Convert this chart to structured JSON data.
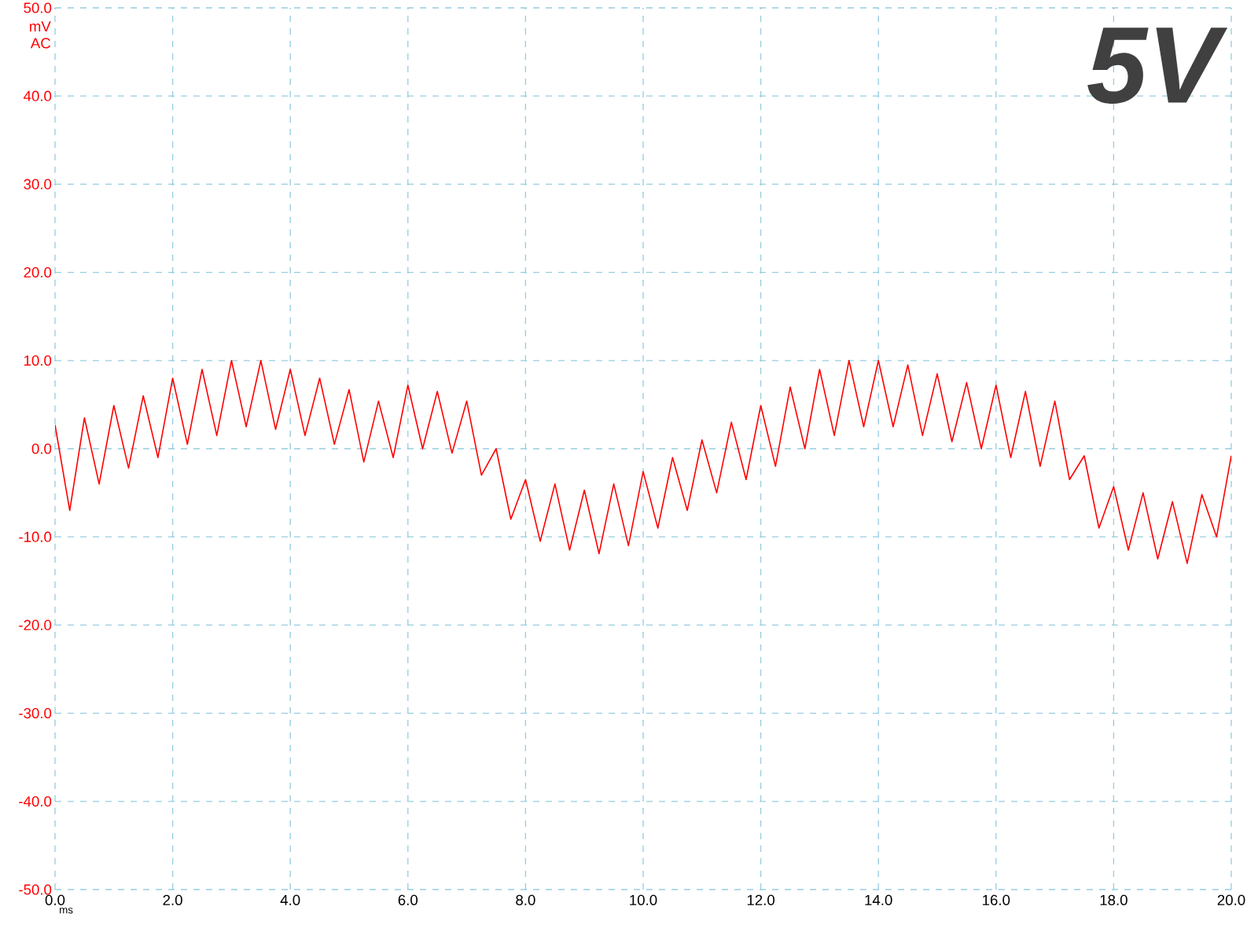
{
  "chart_data": {
    "type": "line",
    "title": "5V",
    "xlabel": "ms",
    "ylabel": "mV AC",
    "x": [
      0,
      0.25,
      0.5,
      0.75,
      1,
      1.25,
      1.5,
      1.75,
      2,
      2.25,
      2.5,
      2.75,
      3,
      3.25,
      3.5,
      3.75,
      4,
      4.25,
      4.5,
      4.75,
      5,
      5.25,
      5.5,
      5.75,
      6,
      6.25,
      6.5,
      6.75,
      7,
      7.25,
      7.5,
      7.75,
      8,
      8.25,
      8.5,
      8.75,
      9,
      9.25,
      9.5,
      9.75,
      10,
      10.25,
      10.5,
      10.75,
      11,
      11.25,
      11.5,
      11.75,
      12,
      12.25,
      12.5,
      12.75,
      13,
      13.25,
      13.5,
      13.75,
      14,
      14.25,
      14.5,
      14.75,
      15,
      15.25,
      15.5,
      15.75,
      16,
      16.25,
      16.5,
      16.75,
      17,
      17.25,
      17.5,
      17.75,
      18,
      18.25,
      18.5,
      18.75,
      19,
      19.25,
      19.5,
      19.75,
      20
    ],
    "series": [
      {
        "color": "#ff0000",
        "values": [
          2.7,
          -7,
          3.5,
          -4,
          4.9,
          -2.2,
          6,
          -1,
          8,
          0.5,
          9,
          1.5,
          10,
          2.5,
          10,
          2.2,
          9,
          1.5,
          8,
          0.5,
          6.7,
          -1.5,
          5.4,
          -1,
          7.2,
          0,
          6.5,
          -0.5,
          5.4,
          -3,
          0,
          -8,
          -3.5,
          -10.5,
          -4,
          -11.5,
          -4.7,
          -11.9,
          -4,
          -11,
          -2.6,
          -9,
          -1,
          -7,
          1,
          -5,
          3,
          -3.5,
          4.9,
          -2,
          7,
          0,
          9,
          1.5,
          10,
          2.5,
          10,
          2.5,
          9.5,
          1.5,
          8.5,
          0.8,
          7.5,
          0,
          7.2,
          -1,
          6.5,
          -2,
          5.4,
          -3.5,
          -0.8,
          -9,
          -4.3,
          -11.5,
          -5,
          -12.5,
          -6,
          -13,
          -5.2,
          -10,
          -0.8
        ]
      }
    ],
    "xlim": [
      0,
      20
    ],
    "xticks": [
      {
        "value": 0,
        "label": "0.0"
      },
      {
        "value": 2,
        "label": "2.0"
      },
      {
        "value": 4,
        "label": "4.0"
      },
      {
        "value": 6,
        "label": "6.0"
      },
      {
        "value": 8,
        "label": "8.0"
      },
      {
        "value": 10,
        "label": "10.0"
      },
      {
        "value": 12,
        "label": "12.0"
      },
      {
        "value": 14,
        "label": "14.0"
      },
      {
        "value": 16,
        "label": "16.0"
      },
      {
        "value": 18,
        "label": "18.0"
      },
      {
        "value": 20,
        "label": "20.0"
      }
    ],
    "ylim": [
      -50,
      50
    ],
    "yticks": [
      {
        "value": -50,
        "label": "-50.0"
      },
      {
        "value": -40,
        "label": "-40.0"
      },
      {
        "value": -30,
        "label": "-30.0"
      },
      {
        "value": -20,
        "label": "-20.0"
      },
      {
        "value": -10,
        "label": "-10.0"
      },
      {
        "value": 0,
        "label": "0.0"
      },
      {
        "value": 10,
        "label": "10.0"
      },
      {
        "value": 20,
        "label": "20.0"
      },
      {
        "value": 30,
        "label": "30.0"
      },
      {
        "value": 40,
        "label": "40.0"
      },
      {
        "value": 50,
        "label": "50.0"
      }
    ],
    "grid": true
  }
}
